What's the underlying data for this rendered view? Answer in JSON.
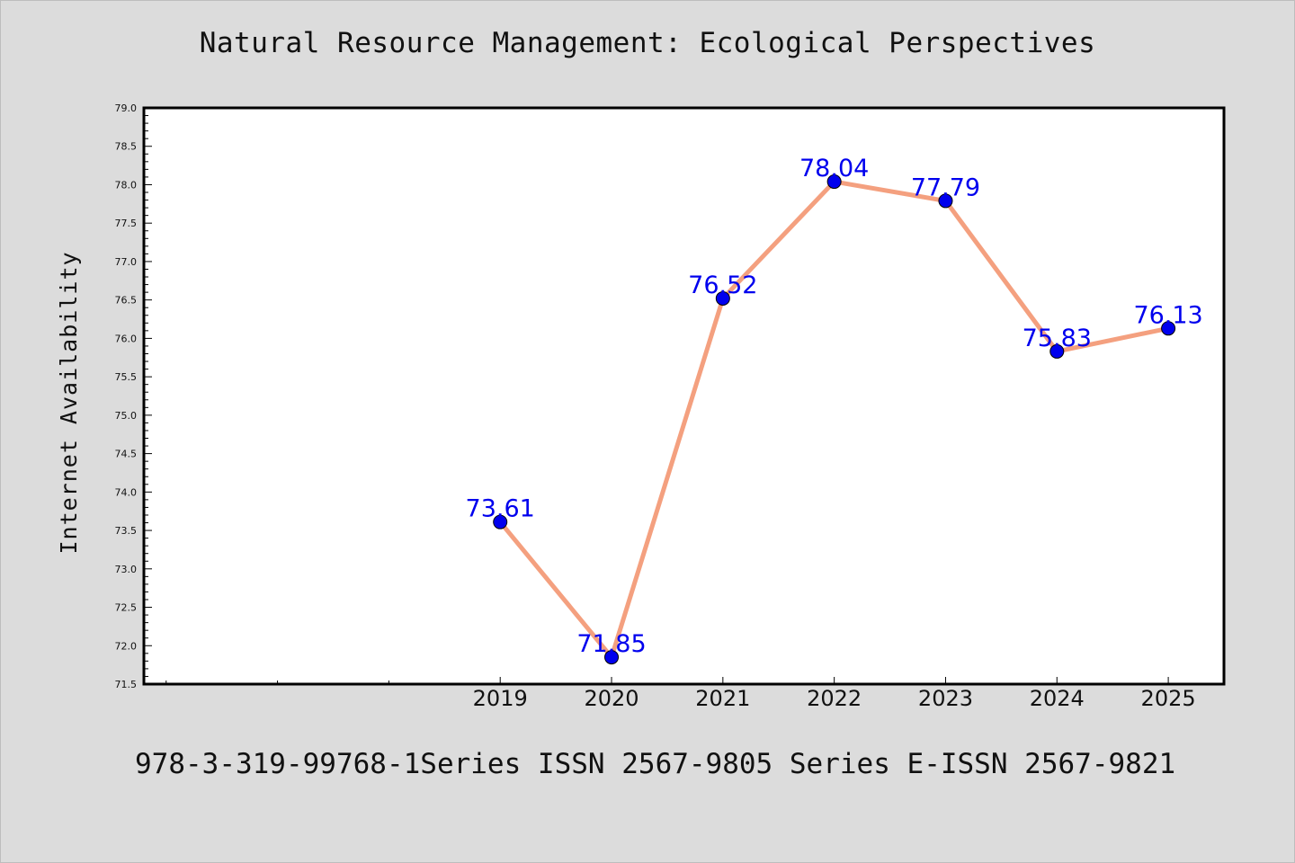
{
  "title": "Natural Resource Management: Ecological Perspectives",
  "footer": "978-3-319-99768-1Series ISSN 2567-9805 Series E-ISSN 2567-9821",
  "chart_data": {
    "type": "line",
    "title": "Natural Resource Management: Ecological Perspectives",
    "xlabel": "",
    "ylabel": "Internet Availability",
    "x": [
      2019,
      2020,
      2021,
      2022,
      2023,
      2024,
      2025
    ],
    "series": [
      {
        "values": [
          73.61,
          71.85,
          76.52,
          78.04,
          77.79,
          75.83,
          76.13
        ]
      }
    ],
    "data_labels": [
      "73.61",
      "71.85",
      "76.52",
      "78.04",
      "77.79",
      "75.83",
      "76.13"
    ],
    "xlim": [
      2015.8,
      2025.5
    ],
    "ylim": [
      71.5,
      79.0
    ],
    "y_major_step": 0.5,
    "y_minor_step": 0.1,
    "x_major_ticks": [
      2019,
      2020,
      2021,
      2022,
      2023,
      2024,
      2025
    ],
    "x_minor_ticks": [
      2016,
      2017,
      2018
    ],
    "grid": false,
    "colors": {
      "line": "#f4a07f",
      "marker": "#0000ee",
      "label": "#0000ee",
      "plot_bg": "#ffffff",
      "page_bg": "#dcdcdc"
    }
  }
}
